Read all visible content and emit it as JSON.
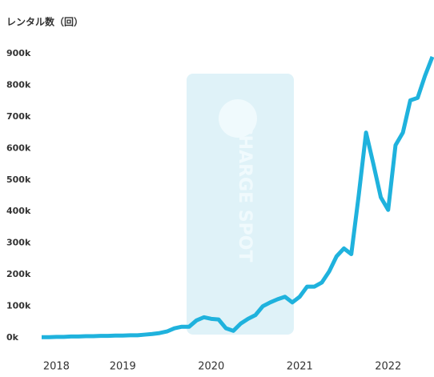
{
  "chart_data": {
    "type": "line",
    "y_axis_title": "レンタル数（回）",
    "watermark": "CHARGE SPOT",
    "categories": [
      null,
      null,
      "2018",
      null,
      null,
      null,
      null,
      null,
      null,
      null,
      null,
      "2019",
      null,
      null,
      null,
      null,
      null,
      null,
      null,
      null,
      null,
      null,
      null,
      "2020",
      null,
      null,
      null,
      null,
      null,
      null,
      null,
      null,
      null,
      null,
      null,
      "2021",
      null,
      null,
      null,
      null,
      null,
      null,
      null,
      null,
      null,
      null,
      null,
      "2022",
      null,
      null,
      null,
      null,
      null,
      null
    ],
    "series": [
      {
        "color": "#1fb2dd",
        "values": [
          2000,
          2000,
          3000,
          3000,
          4000,
          4000,
          5000,
          5000,
          6000,
          6000,
          7000,
          7000,
          8000,
          8000,
          10000,
          12000,
          15000,
          20000,
          30000,
          35000,
          35000,
          55000,
          65000,
          60000,
          58000,
          30000,
          22000,
          45000,
          60000,
          72000,
          100000,
          112000,
          122000,
          130000,
          112000,
          130000,
          162000,
          162000,
          175000,
          210000,
          258000,
          283000,
          265000,
          450000,
          650000,
          550000,
          445000,
          405000,
          610000,
          650000,
          752000,
          760000,
          830000,
          890000
        ]
      }
    ],
    "ylim": [
      0,
      900000
    ],
    "yticks": [
      {
        "value": 0,
        "label": "0k"
      },
      {
        "value": 100000,
        "label": "100k"
      },
      {
        "value": 200000,
        "label": "200k"
      },
      {
        "value": 300000,
        "label": "300k"
      },
      {
        "value": 400000,
        "label": "400k"
      },
      {
        "value": 500000,
        "label": "500k"
      },
      {
        "value": 600000,
        "label": "600k"
      },
      {
        "value": 700000,
        "label": "700k"
      },
      {
        "value": 800000,
        "label": "800k"
      },
      {
        "value": 900000,
        "label": "900k"
      }
    ]
  }
}
